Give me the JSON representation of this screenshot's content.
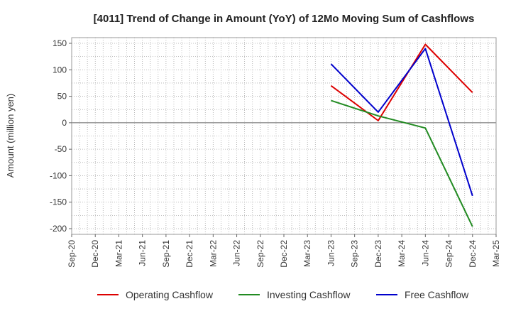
{
  "chart_data": {
    "type": "line",
    "title": "[4011]  Trend of Change in Amount (YoY) of 12Mo Moving Sum of Cashflows",
    "xlabel": "",
    "ylabel": "Amount (million yen)",
    "ylim": [
      -200,
      150
    ],
    "yticks": [
      150,
      100,
      50,
      0,
      -50,
      -100,
      -150,
      -200
    ],
    "categories": [
      "Sep-20",
      "Dec-20",
      "Mar-21",
      "Jun-21",
      "Sep-21",
      "Dec-21",
      "Mar-22",
      "Jun-22",
      "Sep-22",
      "Dec-22",
      "Mar-23",
      "Jun-23",
      "Sep-23",
      "Dec-23",
      "Mar-24",
      "Jun-24",
      "Sep-24",
      "Dec-24",
      "Mar-25"
    ],
    "grid": true,
    "legend_position": "bottom",
    "series": [
      {
        "name": "Operating Cashflow",
        "color": "#dd0000",
        "points": [
          [
            "Jun-23",
            70
          ],
          [
            "Dec-23",
            4
          ],
          [
            "Jun-24",
            148
          ],
          [
            "Dec-24",
            57
          ]
        ]
      },
      {
        "name": "Investing Cashflow",
        "color": "#228b22",
        "points": [
          [
            "Jun-23",
            42
          ],
          [
            "Dec-23",
            13
          ],
          [
            "Jun-24",
            -10
          ],
          [
            "Dec-24",
            -196
          ]
        ]
      },
      {
        "name": "Free Cashflow",
        "color": "#0000cc",
        "points": [
          [
            "Jun-23",
            111
          ],
          [
            "Dec-23",
            20
          ],
          [
            "Jun-24",
            140
          ],
          [
            "Dec-24",
            -138
          ]
        ]
      }
    ]
  }
}
